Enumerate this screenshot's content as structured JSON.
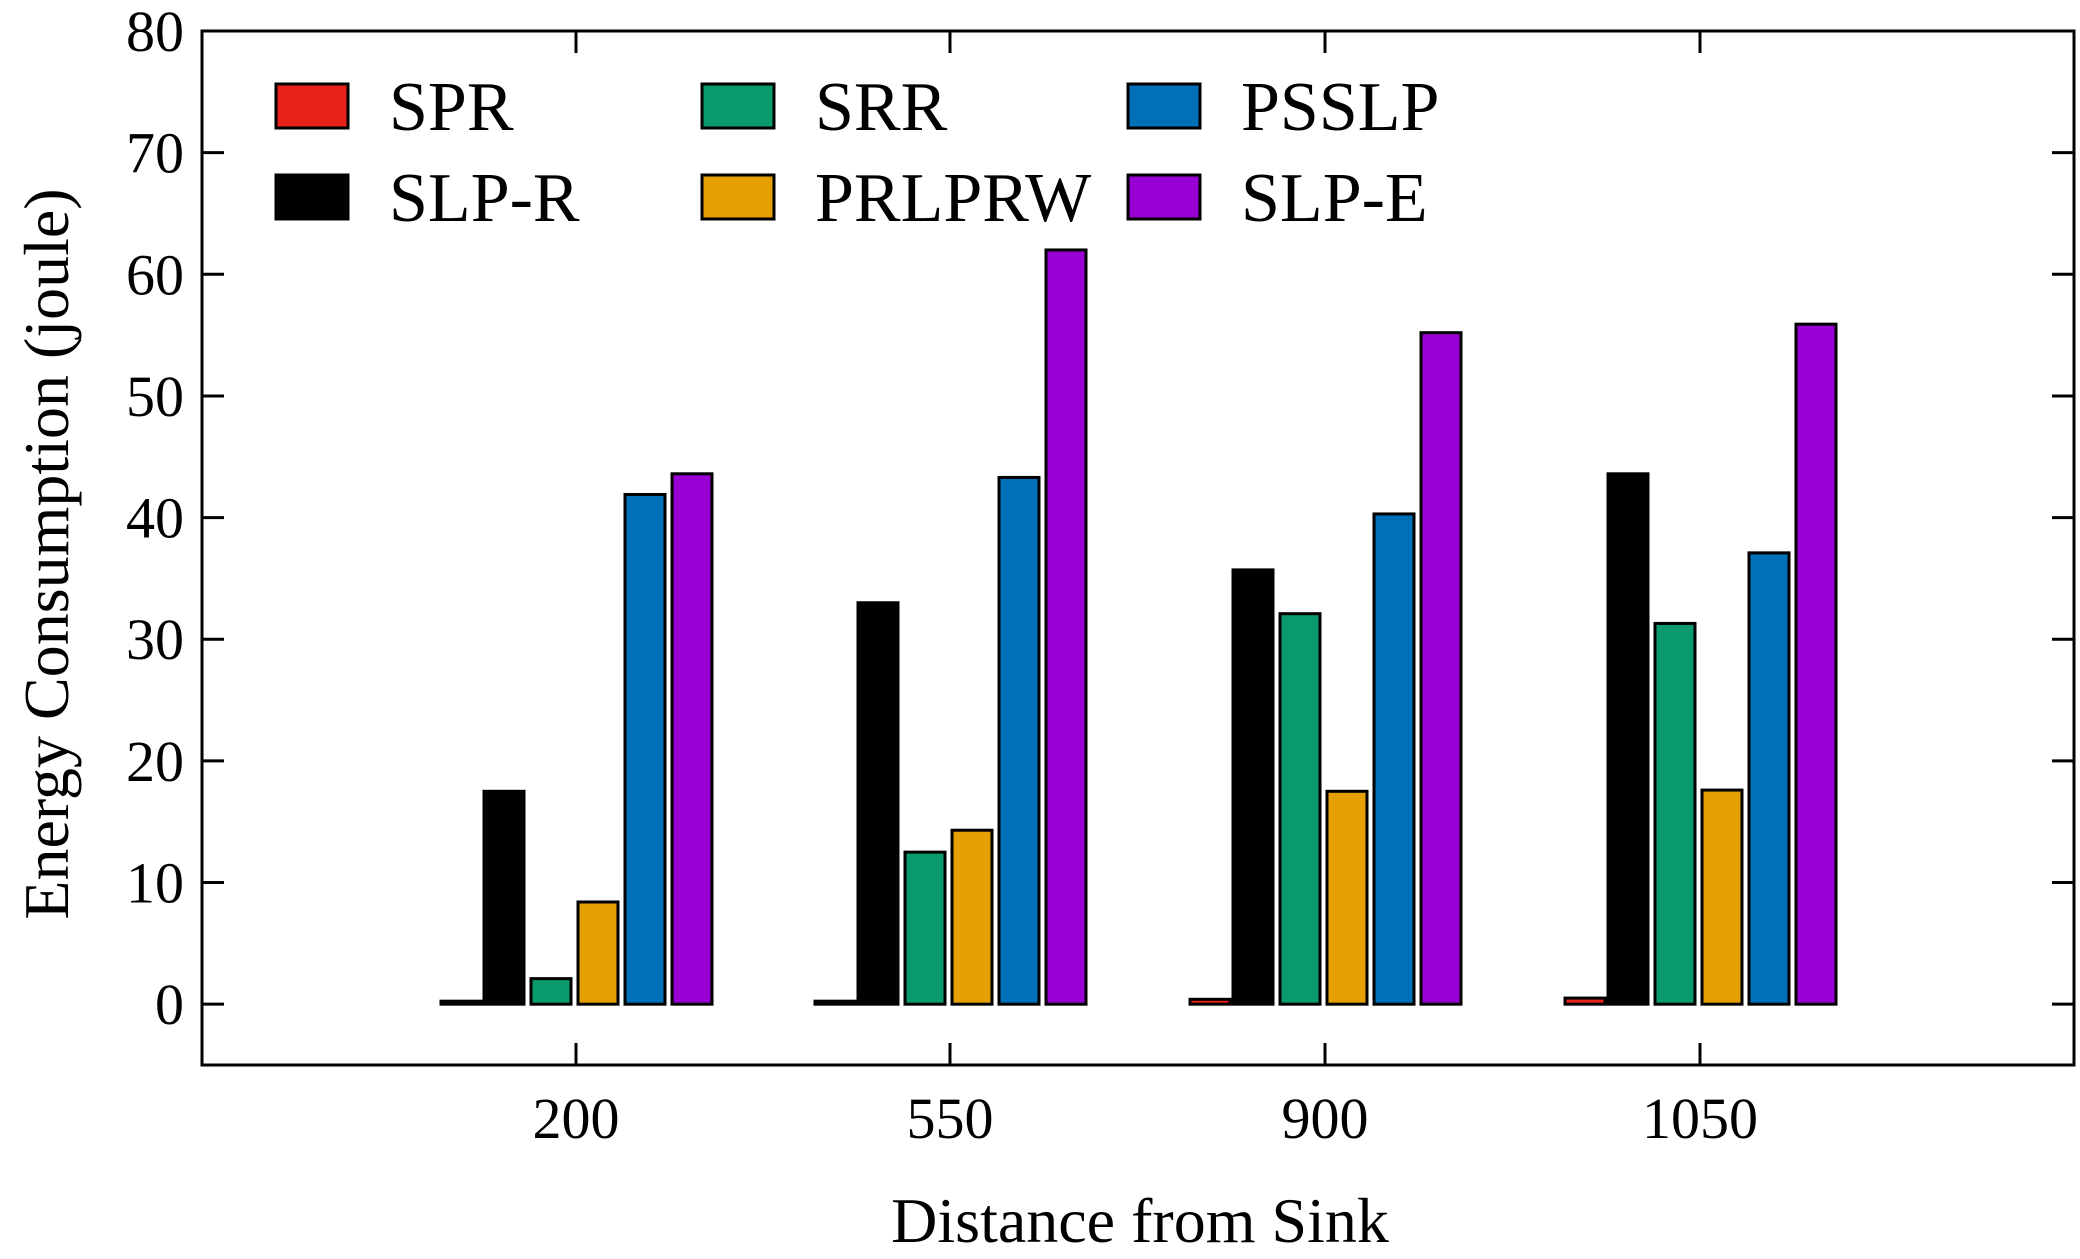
{
  "chart_data": {
    "type": "bar",
    "title": "",
    "xlabel": "Distance from Sink",
    "ylabel": "Energy Consumption (joule)",
    "ylim": [
      -5,
      80
    ],
    "yticks": [
      "0",
      "10",
      "20",
      "30",
      "40",
      "50",
      "60",
      "70",
      "80"
    ],
    "categories": [
      "200",
      "550",
      "900",
      "1050"
    ],
    "legend_position": "top-left",
    "series": [
      {
        "name": "SPR",
        "color": "#e8221b",
        "values": [
          0.05,
          0.15,
          0.4,
          0.5
        ]
      },
      {
        "name": "SLP-R",
        "color": "#000000",
        "values": [
          17.5,
          33.0,
          35.7,
          43.6
        ]
      },
      {
        "name": "SRR",
        "color": "#0a9a6e",
        "values": [
          2.1,
          12.5,
          32.1,
          31.3
        ]
      },
      {
        "name": "PRLPRW",
        "color": "#e4a000",
        "values": [
          8.4,
          14.3,
          17.5,
          17.6
        ]
      },
      {
        "name": "PSSLP",
        "color": "#0070b8",
        "values": [
          41.9,
          43.3,
          40.3,
          37.1
        ]
      },
      {
        "name": "SLP-E",
        "color": "#9900d4",
        "values": [
          43.6,
          62.0,
          55.2,
          55.9
        ]
      }
    ]
  }
}
